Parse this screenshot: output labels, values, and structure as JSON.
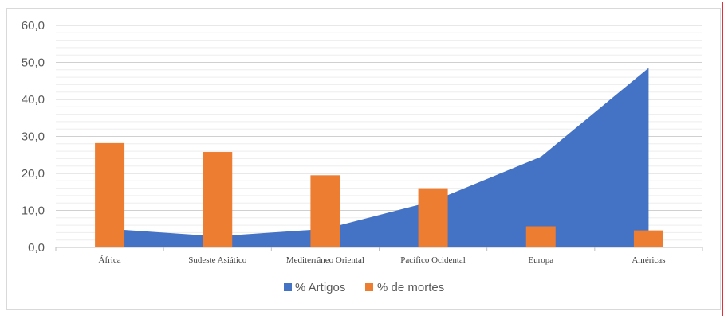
{
  "chart_data": {
    "type": "bar",
    "categories": [
      "África",
      "Sudeste Asiático",
      "Mediterrâneo Oriental",
      "Pacífico Ocidental",
      "Europa",
      "Américas"
    ],
    "series": [
      {
        "name": "% Artigos",
        "type": "area",
        "color": "#4472C4",
        "values": [
          5.0,
          3.0,
          5.0,
          12.5,
          24.5,
          48.5
        ]
      },
      {
        "name": "% de mortes",
        "type": "bar",
        "color": "#ED7D31",
        "values": [
          28.2,
          25.8,
          19.5,
          16.0,
          5.7,
          4.6
        ]
      }
    ],
    "y_ticks": [
      "0,0",
      "10,0",
      "20,0",
      "30,0",
      "40,0",
      "50,0",
      "60,0"
    ],
    "ylim": [
      0,
      60
    ],
    "grid": true,
    "minor_grid": true,
    "legend_position": "bottom",
    "title": "",
    "xlabel": "",
    "ylabel": ""
  }
}
